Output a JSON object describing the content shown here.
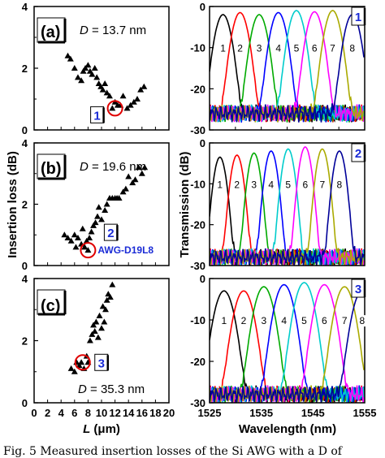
{
  "caption": "Fig. 5 Measured insertion losses of the Si AWG with a D of",
  "chart_data": [
    {
      "type": "scatter",
      "panel": "(a)",
      "annotation": "D = 13.7 nm",
      "d_symbol": "D",
      "d_value": "= 13.7 nm",
      "marker_label": "1",
      "xlim": [
        0,
        20
      ],
      "ylim": [
        0,
        4
      ],
      "yticks": [
        "0",
        "2",
        "4"
      ],
      "points": [
        [
          5.0,
          2.4
        ],
        [
          5.4,
          2.3
        ],
        [
          6.0,
          2.0
        ],
        [
          6.5,
          1.7
        ],
        [
          7.0,
          1.6
        ],
        [
          7.3,
          1.9
        ],
        [
          7.6,
          2.0
        ],
        [
          8.0,
          2.1
        ],
        [
          8.3,
          1.9
        ],
        [
          8.6,
          1.8
        ],
        [
          9.0,
          2.0
        ],
        [
          9.3,
          1.7
        ],
        [
          9.6,
          1.5
        ],
        [
          9.9,
          1.4
        ],
        [
          10.2,
          1.3
        ],
        [
          10.5,
          1.5
        ],
        [
          10.8,
          1.2
        ],
        [
          11.2,
          1.1
        ],
        [
          11.6,
          0.7
        ],
        [
          12.0,
          0.9
        ],
        [
          12.4,
          0.8
        ],
        [
          12.8,
          0.8
        ],
        [
          13.2,
          1.1
        ],
        [
          13.8,
          0.7
        ],
        [
          14.3,
          0.8
        ],
        [
          14.8,
          0.9
        ],
        [
          15.3,
          1.0
        ],
        [
          15.8,
          1.3
        ],
        [
          16.3,
          1.4
        ]
      ],
      "highlight": [
        12.0,
        0.7
      ]
    },
    {
      "type": "scatter",
      "panel": "(b)",
      "annotation": "D = 19.6 nm",
      "d_symbol": "D",
      "d_value": "= 19.6 nm",
      "marker_label": "2",
      "device_label": "AWG-D19L8",
      "xlim": [
        0,
        20
      ],
      "ylim": [
        0,
        4
      ],
      "yticks": [
        "0",
        "2",
        "4"
      ],
      "points": [
        [
          4.5,
          1.0
        ],
        [
          5.0,
          0.9
        ],
        [
          5.5,
          0.8
        ],
        [
          6.0,
          1.0
        ],
        [
          6.2,
          0.6
        ],
        [
          6.5,
          0.9
        ],
        [
          7.0,
          0.7
        ],
        [
          7.2,
          1.2
        ],
        [
          7.5,
          0.6
        ],
        [
          7.8,
          0.8
        ],
        [
          8.0,
          0.5
        ],
        [
          8.2,
          0.9
        ],
        [
          8.5,
          1.1
        ],
        [
          8.8,
          1.3
        ],
        [
          9.1,
          1.4
        ],
        [
          9.4,
          1.6
        ],
        [
          9.6,
          1.9
        ],
        [
          10.0,
          1.5
        ],
        [
          10.5,
          1.8
        ],
        [
          10.8,
          2.0
        ],
        [
          11.2,
          2.2
        ],
        [
          11.6,
          2.2
        ],
        [
          12.0,
          2.2
        ],
        [
          12.3,
          2.2
        ],
        [
          12.6,
          2.2
        ],
        [
          13.2,
          2.4
        ],
        [
          13.6,
          2.5
        ],
        [
          14.0,
          2.9
        ],
        [
          14.6,
          2.7
        ],
        [
          15.0,
          2.8
        ],
        [
          15.5,
          3.2
        ],
        [
          16.0,
          3.0
        ],
        [
          16.4,
          3.2
        ]
      ],
      "highlight": [
        8.0,
        0.5
      ]
    },
    {
      "type": "scatter",
      "panel": "(c)",
      "annotation": "D = 35.3 nm",
      "d_symbol": "D",
      "d_value": "= 35.3 nm",
      "marker_label": "3",
      "xlim": [
        0,
        20
      ],
      "ylim": [
        0,
        4
      ],
      "xticks": [
        "0",
        "2",
        "4",
        "6",
        "8",
        "10",
        "12",
        "14",
        "16",
        "18",
        "20"
      ],
      "yticks": [
        "0",
        "2",
        "4"
      ],
      "points": [
        [
          5.5,
          1.1
        ],
        [
          6.0,
          1.0
        ],
        [
          6.3,
          1.3
        ],
        [
          6.7,
          1.2
        ],
        [
          7.0,
          1.3
        ],
        [
          7.4,
          1.1
        ],
        [
          7.8,
          1.5
        ],
        [
          8.0,
          1.3
        ],
        [
          8.3,
          2.0
        ],
        [
          8.6,
          2.2
        ],
        [
          8.8,
          2.5
        ],
        [
          9.0,
          2.3
        ],
        [
          9.2,
          2.6
        ],
        [
          9.5,
          2.1
        ],
        [
          9.7,
          2.8
        ],
        [
          10.0,
          2.4
        ],
        [
          10.2,
          3.1
        ],
        [
          10.4,
          2.6
        ],
        [
          10.6,
          3.0
        ],
        [
          10.8,
          3.3
        ],
        [
          11.0,
          3.5
        ],
        [
          11.3,
          3.4
        ],
        [
          11.6,
          3.8
        ]
      ],
      "highlight": [
        7.2,
        1.3
      ]
    },
    {
      "type": "line",
      "panel_label": "1",
      "xlim": [
        1525,
        1555
      ],
      "ylim": [
        -30,
        0
      ],
      "yticks": [
        "0",
        "-10",
        "-20",
        "-30"
      ],
      "channel_labels": [
        "1",
        "2",
        "3",
        "4",
        "5",
        "6",
        "7",
        "8"
      ],
      "centers": [
        1527.6,
        1530.9,
        1534.6,
        1538.3,
        1541.8,
        1545.3,
        1548.8,
        1552.6
      ],
      "peaks_db": [
        -2.0,
        -1.5,
        -2.0,
        -1.5,
        -1.0,
        -1.3,
        -1.0,
        -2.0
      ],
      "fwhm_nm": 2.4,
      "floor_db": -26,
      "colors": [
        "#000000",
        "#ff0000",
        "#00aa00",
        "#0000ff",
        "#00cccc",
        "#ff00ff",
        "#aaaa00",
        "#000099"
      ]
    },
    {
      "type": "line",
      "panel_label": "2",
      "xlim": [
        1525,
        1555
      ],
      "ylim": [
        -30,
        0
      ],
      "yticks": [
        "0",
        "-10",
        "-20",
        "-30"
      ],
      "channel_labels": [
        "1",
        "2",
        "3",
        "4",
        "5",
        "6",
        "7",
        "8"
      ],
      "centers": [
        1527.0,
        1530.3,
        1533.6,
        1536.9,
        1540.2,
        1543.5,
        1546.8,
        1550.1
      ],
      "peaks_db": [
        -3.5,
        -3.0,
        -2.5,
        -2.0,
        -1.5,
        -1.0,
        -1.5,
        -2.0
      ],
      "fwhm_nm": 1.8,
      "floor_db": -28,
      "colors": [
        "#000000",
        "#ff0000",
        "#00aa00",
        "#0000ff",
        "#00cccc",
        "#ff00ff",
        "#aaaa00",
        "#000099"
      ]
    },
    {
      "type": "line",
      "panel_label": "3",
      "xlim": [
        1525,
        1555
      ],
      "ylim": [
        -30,
        0
      ],
      "xticks": [
        "1525",
        "1535",
        "1545",
        "1555"
      ],
      "yticks": [
        "0",
        "-10",
        "-20",
        "-30"
      ],
      "channel_labels": [
        "1",
        "2",
        "3",
        "4",
        "5",
        "6",
        "7",
        "8"
      ],
      "centers": [
        1527.8,
        1531.6,
        1535.5,
        1539.4,
        1543.3,
        1547.2,
        1551.1,
        1554.5
      ],
      "peaks_db": [
        -3.0,
        -3.0,
        -2.0,
        -1.5,
        -1.0,
        -1.5,
        -2.0,
        -3.0
      ],
      "fwhm_nm": 2.8,
      "floor_db": -28,
      "colors": [
        "#000000",
        "#ff0000",
        "#00aa00",
        "#0000ff",
        "#00cccc",
        "#ff00ff",
        "#aaaa00",
        "#000099"
      ]
    }
  ],
  "axes": {
    "left_ylabel": "Insertion loss (dB)",
    "left_xlabel_symbol": "L",
    "left_xlabel_unit": " (μm)",
    "right_ylabel": "Transmission (dB)",
    "right_xlabel": "Wavelength (nm)"
  }
}
